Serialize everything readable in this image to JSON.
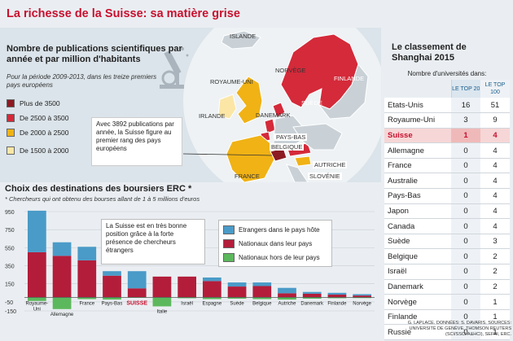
{
  "title": "La richesse de la Suisse: sa matière grise",
  "map": {
    "title": "Nombre de publications scientifiques par année et par million d'habitants",
    "subtitle": "Pour la période 2009-2013, dans les treize premiers pays européens",
    "legend": [
      {
        "label": "Plus de 3500",
        "color": "#8c1b22"
      },
      {
        "label": "De 2500 à 3500",
        "color": "#d42a3a"
      },
      {
        "label": "De 2000 à 2500",
        "color": "#f0b215"
      },
      {
        "label": "De 1500 à 2000",
        "color": "#fbe6a6"
      }
    ],
    "callout": "Avec 3892 publications par année, la Suisse figure au premier rang des pays européens",
    "countries": {
      "islande": "ISLANDE",
      "norvege": "NORVÈGE",
      "royaume_uni": "ROYAUME-UNI",
      "irlande": "IRLANDE",
      "danemark": "DANEMARK",
      "pays_bas": "PAYS-BAS",
      "belgique": "BELGIQUE",
      "france": "FRANCE",
      "autriche": "AUTRICHE",
      "slovenie": "SLOVÉNIE",
      "suede": "SUÈDE",
      "finlande": "FINLANDE"
    }
  },
  "chart_data": {
    "type": "bar",
    "title": "Choix des destinations des boursiers ERC *",
    "subtitle": "* Chercheurs qui ont obtenu des bourses allant de 1 à 5 millions d'euros",
    "categories": [
      "Royaume-Uni",
      "Allemagne",
      "France",
      "Pays-Bas",
      "SUISSE",
      "Italie",
      "Israël",
      "Espagne",
      "Suède",
      "Belgique",
      "Autriche",
      "Danemark",
      "Finlande",
      "Norvège"
    ],
    "highlight": "SUISSE",
    "yticks": [
      950,
      750,
      550,
      350,
      150,
      -50,
      -150
    ],
    "ylim": [
      -150,
      950
    ],
    "series": [
      {
        "name": "Etrangers dans le pays hôte",
        "color": "#4a9bc8",
        "values": [
          460,
          150,
          150,
          50,
          190,
          0,
          0,
          40,
          45,
          40,
          60,
          20,
          20,
          15
        ]
      },
      {
        "name": "Nationaux dans leur pays",
        "color": "#b31d3a",
        "values": [
          500,
          460,
          410,
          240,
          100,
          230,
          230,
          180,
          120,
          125,
          45,
          40,
          30,
          20
        ]
      },
      {
        "name": "Nationaux hors de leur pays",
        "color": "#5cb85c",
        "values": [
          -40,
          -130,
          -20,
          -25,
          -5,
          -100,
          -10,
          -20,
          -15,
          -20,
          -25,
          -15,
          -10,
          -8
        ]
      }
    ],
    "callout": "La Suisse est en très bonne position grâce à la forte présence de chercheurs étrangers"
  },
  "shanghai": {
    "title": "Le classement de Shanghai 2015",
    "header": "Nombre d'universités dans:",
    "col1": "LE TOP 20",
    "col2": "LE TOP 100",
    "rows": [
      {
        "country": "Etats-Unis",
        "top20": "16",
        "top100": "51"
      },
      {
        "country": "Royaume-Uni",
        "top20": "3",
        "top100": "9"
      },
      {
        "country": "Suisse",
        "top20": "1",
        "top100": "4",
        "highlight": true
      },
      {
        "country": "Allemagne",
        "top20": "0",
        "top100": "4"
      },
      {
        "country": "France",
        "top20": "0",
        "top100": "4"
      },
      {
        "country": "Australie",
        "top20": "0",
        "top100": "4"
      },
      {
        "country": "Pays-Bas",
        "top20": "0",
        "top100": "4"
      },
      {
        "country": "Japon",
        "top20": "0",
        "top100": "4"
      },
      {
        "country": "Canada",
        "top20": "0",
        "top100": "4"
      },
      {
        "country": "Suède",
        "top20": "0",
        "top100": "3"
      },
      {
        "country": "Belgique",
        "top20": "0",
        "top100": "2"
      },
      {
        "country": "Israël",
        "top20": "0",
        "top100": "2"
      },
      {
        "country": "Danemark",
        "top20": "0",
        "top100": "2"
      },
      {
        "country": "Norvège",
        "top20": "0",
        "top100": "1"
      },
      {
        "country": "Finlande",
        "top20": "0",
        "top100": "1"
      },
      {
        "country": "Russie",
        "top20": "0",
        "top100": "1"
      }
    ]
  },
  "source": "G. LAPLACE. DONNÉES: S. DAVARIS. SOURCES: UNIVERSITÉ DE GENÈVE, THOMSON REUTERS (SCI/SSCI/A&HCI), SEFRI, ERC."
}
